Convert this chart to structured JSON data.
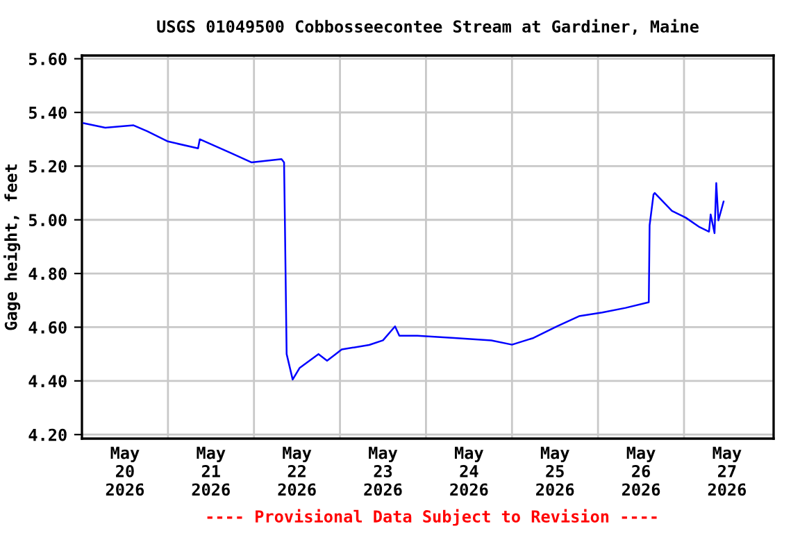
{
  "chart_data": {
    "type": "line",
    "title": "USGS 01049500 Cobbosseecontee Stream at Gardiner, Maine",
    "ylabel": "Gage height, feet",
    "annotations": [
      "---- Provisional Data Subject to Revision ----"
    ],
    "x": [
      "2026-05-20T00:30",
      "2026-05-20T06:30",
      "2026-05-20T14:24",
      "2026-05-20T18:14",
      "2026-05-21T00:00",
      "2026-05-21T08:24",
      "2026-05-21T08:53",
      "2026-05-21T17:31",
      "2026-05-21T23:17",
      "2026-05-22T07:41",
      "2026-05-22T08:24",
      "2026-05-22T08:38",
      "2026-05-22T09:07",
      "2026-05-22T10:48",
      "2026-05-22T12:43",
      "2026-05-22T18:00",
      "2026-05-22T20:24",
      "2026-05-23T00:29",
      "2026-05-23T08:10",
      "2026-05-23T12:00",
      "2026-05-23T15:22",
      "2026-05-23T16:34",
      "2026-05-23T21:36",
      "2026-05-24T07:55",
      "2026-05-24T18:14",
      "2026-05-25T00:00",
      "2026-05-25T06:00",
      "2026-05-25T12:29",
      "2026-05-25T18:43",
      "2026-05-26T01:12",
      "2026-05-26T07:41",
      "2026-05-26T14:10",
      "2026-05-26T14:24",
      "2026-05-26T15:29",
      "2026-05-26T15:50",
      "2026-05-26T20:38",
      "2026-05-27T00:29",
      "2026-05-27T04:19",
      "2026-05-27T06:58",
      "2026-05-27T07:26",
      "2026-05-27T08:31",
      "2026-05-27T09:00",
      "2026-05-27T09:36",
      "2026-05-27T11:02"
    ],
    "series": [
      {
        "color": "#0000ff",
        "values": [
          5.36,
          5.343,
          5.352,
          5.33,
          5.292,
          5.266,
          5.3,
          5.249,
          5.214,
          5.226,
          5.214,
          4.99,
          4.5,
          4.405,
          4.448,
          4.5,
          4.475,
          4.517,
          4.534,
          4.551,
          4.603,
          4.568,
          4.568,
          4.56,
          4.551,
          4.535,
          4.56,
          4.603,
          4.641,
          4.655,
          4.672,
          4.693,
          4.98,
          5.094,
          5.1,
          5.033,
          5.008,
          4.973,
          4.956,
          5.02,
          4.95,
          5.137,
          4.998,
          5.068
        ]
      }
    ],
    "xlim": [
      "2026-05-20T00:00",
      "2026-05-28T01:00"
    ],
    "xticks": [
      {
        "value": "2026-05-20T12:00",
        "label": "May\n20\n2026"
      },
      {
        "value": "2026-05-21T00:00",
        "label": null
      },
      {
        "value": "2026-05-21T12:00",
        "label": "May\n21\n2026"
      },
      {
        "value": "2026-05-22T00:00",
        "label": null
      },
      {
        "value": "2026-05-22T12:00",
        "label": "May\n22\n2026"
      },
      {
        "value": "2026-05-23T00:00",
        "label": null
      },
      {
        "value": "2026-05-23T12:00",
        "label": "May\n23\n2026"
      },
      {
        "value": "2026-05-24T00:00",
        "label": null
      },
      {
        "value": "2026-05-24T12:00",
        "label": "May\n24\n2026"
      },
      {
        "value": "2026-05-25T00:00",
        "label": null
      },
      {
        "value": "2026-05-25T12:00",
        "label": "May\n25\n2026"
      },
      {
        "value": "2026-05-26T00:00",
        "label": null
      },
      {
        "value": "2026-05-26T12:00",
        "label": "May\n26\n2026"
      },
      {
        "value": "2026-05-27T00:00",
        "label": null
      },
      {
        "value": "2026-05-27T12:00",
        "label": "May\n27\n2026"
      }
    ],
    "ylim": [
      4.185,
      5.612
    ],
    "yticks": [
      {
        "value": 4.2,
        "label": "4.20"
      },
      {
        "value": 4.4,
        "label": "4.40"
      },
      {
        "value": 4.6,
        "label": "4.60"
      },
      {
        "value": 4.8,
        "label": "4.80"
      },
      {
        "value": 5.0,
        "label": "5.00"
      },
      {
        "value": 5.2,
        "label": "5.20"
      },
      {
        "value": 5.4,
        "label": "5.40"
      },
      {
        "value": 5.6,
        "label": "5.60"
      }
    ],
    "grid": true,
    "legend": false,
    "line_style": "solid",
    "marker": "none"
  }
}
